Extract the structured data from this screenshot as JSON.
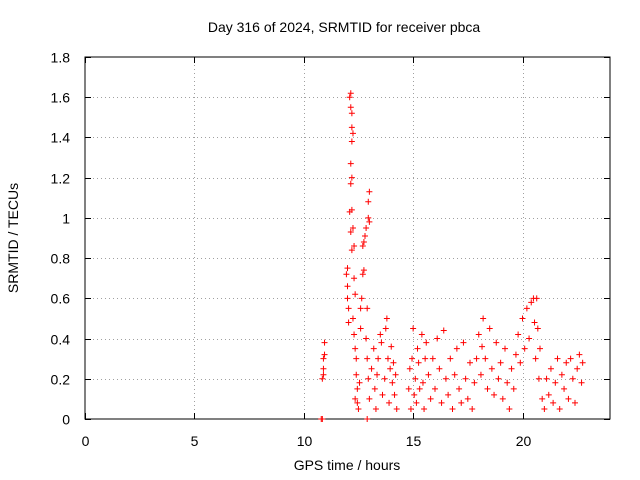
{
  "chart_data": {
    "type": "scatter",
    "title": "Day 316 of 2024, SRMTID for receiver pbca",
    "xlabel": "GPS time / hours",
    "ylabel": "SRMTID / TECUs",
    "xlim": [
      0,
      24
    ],
    "ylim": [
      0,
      1.8
    ],
    "x_ticks": [
      0,
      5,
      10,
      15,
      20
    ],
    "x_tick_labels": [
      "0",
      "5",
      "10",
      "15",
      "20"
    ],
    "y_ticks": [
      0,
      0.2,
      0.4,
      0.6,
      0.8,
      1,
      1.2,
      1.4,
      1.6,
      1.8
    ],
    "y_tick_labels": [
      "0",
      "0.2",
      "0.4",
      "0.6",
      "0.8",
      "1",
      "1.2",
      "1.4",
      "1.6",
      "1.8"
    ],
    "grid": true,
    "marker": "+",
    "color": "#ff0000",
    "series": [
      {
        "name": "SRMTID",
        "points": [
          [
            10.8,
            0.0
          ],
          [
            10.85,
            0.0
          ],
          [
            10.85,
            0.2
          ],
          [
            10.9,
            0.25
          ],
          [
            10.9,
            0.3
          ],
          [
            10.95,
            0.32
          ],
          [
            10.95,
            0.38
          ],
          [
            10.9,
            0.22
          ],
          [
            11.95,
            0.72
          ],
          [
            12.0,
            0.6
          ],
          [
            12.05,
            0.55
          ],
          [
            12.05,
            0.48
          ],
          [
            12.0,
            0.66
          ],
          [
            12.0,
            0.75
          ],
          [
            12.1,
            1.6
          ],
          [
            12.15,
            1.62
          ],
          [
            12.15,
            1.55
          ],
          [
            12.2,
            1.52
          ],
          [
            12.2,
            1.45
          ],
          [
            12.2,
            1.38
          ],
          [
            12.25,
            1.42
          ],
          [
            12.15,
            1.27
          ],
          [
            12.2,
            1.2
          ],
          [
            12.15,
            1.17
          ],
          [
            12.1,
            1.03
          ],
          [
            12.2,
            1.04
          ],
          [
            12.15,
            0.93
          ],
          [
            12.25,
            0.95
          ],
          [
            12.2,
            0.84
          ],
          [
            12.3,
            0.86
          ],
          [
            12.3,
            0.7
          ],
          [
            12.35,
            0.62
          ],
          [
            12.25,
            0.5
          ],
          [
            12.3,
            0.42
          ],
          [
            12.35,
            0.35
          ],
          [
            12.4,
            0.3
          ],
          [
            12.4,
            0.22
          ],
          [
            12.45,
            0.15
          ],
          [
            12.35,
            0.1
          ],
          [
            12.5,
            0.05
          ],
          [
            12.45,
            0.08
          ],
          [
            12.55,
            0.18
          ],
          [
            12.6,
            0.45
          ],
          [
            12.6,
            0.55
          ],
          [
            12.65,
            0.6
          ],
          [
            12.7,
            0.72
          ],
          [
            12.75,
            0.74
          ],
          [
            12.7,
            0.86
          ],
          [
            12.75,
            0.88
          ],
          [
            12.8,
            0.91
          ],
          [
            12.85,
            0.95
          ],
          [
            12.95,
            1.0
          ],
          [
            12.95,
            1.08
          ],
          [
            13.0,
            1.13
          ],
          [
            13.0,
            0.98
          ],
          [
            12.9,
            0.55
          ],
          [
            12.85,
            0.4
          ],
          [
            12.9,
            0.3
          ],
          [
            12.95,
            0.2
          ],
          [
            13.0,
            0.1
          ],
          [
            12.9,
            0.0
          ],
          [
            13.1,
            0.25
          ],
          [
            13.2,
            0.35
          ],
          [
            13.25,
            0.15
          ],
          [
            13.3,
            0.05
          ],
          [
            13.35,
            0.22
          ],
          [
            13.4,
            0.3
          ],
          [
            13.5,
            0.42
          ],
          [
            13.55,
            0.38
          ],
          [
            13.6,
            0.12
          ],
          [
            13.7,
            0.2
          ],
          [
            13.75,
            0.45
          ],
          [
            13.8,
            0.5
          ],
          [
            13.85,
            0.3
          ],
          [
            13.9,
            0.08
          ],
          [
            13.95,
            0.25
          ],
          [
            14.0,
            0.36
          ],
          [
            14.05,
            0.18
          ],
          [
            14.1,
            0.28
          ],
          [
            14.15,
            0.12
          ],
          [
            14.2,
            0.22
          ],
          [
            14.25,
            0.05
          ],
          [
            14.8,
            0.15
          ],
          [
            14.85,
            0.25
          ],
          [
            14.9,
            0.05
          ],
          [
            14.95,
            0.3
          ],
          [
            15.0,
            0.45
          ],
          [
            15.05,
            0.12
          ],
          [
            15.1,
            0.2
          ],
          [
            15.15,
            0.08
          ],
          [
            15.2,
            0.35
          ],
          [
            15.25,
            0.28
          ],
          [
            15.3,
            0.15
          ],
          [
            15.4,
            0.42
          ],
          [
            15.45,
            0.18
          ],
          [
            15.5,
            0.05
          ],
          [
            15.55,
            0.3
          ],
          [
            15.6,
            0.38
          ],
          [
            15.7,
            0.22
          ],
          [
            15.8,
            0.1
          ],
          [
            15.9,
            0.3
          ],
          [
            16.0,
            0.15
          ],
          [
            16.1,
            0.4
          ],
          [
            16.2,
            0.25
          ],
          [
            16.3,
            0.08
          ],
          [
            16.4,
            0.44
          ],
          [
            16.5,
            0.2
          ],
          [
            16.6,
            0.12
          ],
          [
            16.7,
            0.3
          ],
          [
            16.8,
            0.05
          ],
          [
            16.9,
            0.22
          ],
          [
            17.0,
            0.35
          ],
          [
            17.1,
            0.15
          ],
          [
            17.2,
            0.08
          ],
          [
            17.3,
            0.38
          ],
          [
            17.4,
            0.2
          ],
          [
            17.5,
            0.1
          ],
          [
            17.6,
            0.28
          ],
          [
            17.7,
            0.05
          ],
          [
            17.8,
            0.18
          ],
          [
            17.9,
            0.3
          ],
          [
            18.0,
            0.42
          ],
          [
            18.1,
            0.22
          ],
          [
            18.15,
            0.36
          ],
          [
            18.2,
            0.5
          ],
          [
            18.3,
            0.3
          ],
          [
            18.4,
            0.15
          ],
          [
            18.5,
            0.45
          ],
          [
            18.6,
            0.25
          ],
          [
            18.7,
            0.12
          ],
          [
            18.8,
            0.38
          ],
          [
            18.9,
            0.2
          ],
          [
            19.0,
            0.28
          ],
          [
            19.1,
            0.1
          ],
          [
            19.2,
            0.35
          ],
          [
            19.3,
            0.18
          ],
          [
            19.4,
            0.05
          ],
          [
            19.5,
            0.25
          ],
          [
            19.6,
            0.15
          ],
          [
            19.7,
            0.32
          ],
          [
            19.8,
            0.42
          ],
          [
            19.9,
            0.28
          ],
          [
            20.0,
            0.5
          ],
          [
            20.1,
            0.35
          ],
          [
            20.2,
            0.55
          ],
          [
            20.3,
            0.4
          ],
          [
            20.4,
            0.58
          ],
          [
            20.5,
            0.6
          ],
          [
            20.55,
            0.48
          ],
          [
            20.6,
            0.3
          ],
          [
            20.65,
            0.6
          ],
          [
            20.7,
            0.45
          ],
          [
            20.75,
            0.2
          ],
          [
            20.8,
            0.35
          ],
          [
            20.9,
            0.1
          ],
          [
            21.0,
            0.05
          ],
          [
            21.1,
            0.2
          ],
          [
            21.2,
            0.12
          ],
          [
            21.3,
            0.25
          ],
          [
            21.4,
            0.08
          ],
          [
            21.5,
            0.18
          ],
          [
            21.6,
            0.3
          ],
          [
            21.7,
            0.05
          ],
          [
            21.8,
            0.22
          ],
          [
            21.9,
            0.15
          ],
          [
            22.0,
            0.28
          ],
          [
            22.1,
            0.1
          ],
          [
            22.2,
            0.3
          ],
          [
            22.3,
            0.2
          ],
          [
            22.4,
            0.08
          ],
          [
            22.5,
            0.25
          ],
          [
            22.6,
            0.32
          ],
          [
            22.7,
            0.18
          ],
          [
            22.75,
            0.28
          ]
        ]
      }
    ]
  }
}
